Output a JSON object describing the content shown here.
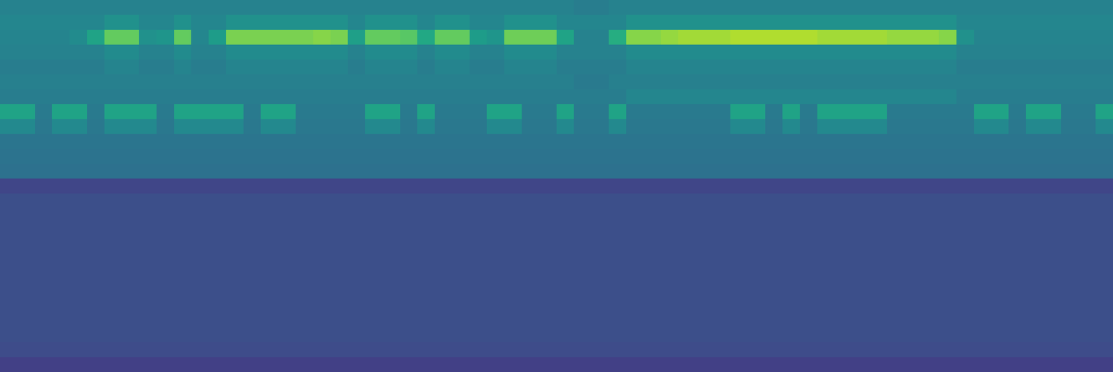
{
  "chart_data": {
    "type": "heatmap",
    "color": "viridis",
    "tick_labels": false,
    "zlim": [
      0,
      100
    ],
    "z": [
      [
        44,
        44,
        44,
        44,
        44,
        44,
        44,
        44,
        44,
        44,
        44,
        44,
        44,
        44,
        44,
        44,
        44,
        44,
        44,
        44,
        44,
        44,
        44,
        44,
        44,
        44,
        44,
        44,
        44,
        44,
        44,
        44,
        44,
        42,
        42,
        44,
        44,
        44,
        44,
        44,
        44,
        44,
        44,
        44,
        44,
        44,
        44,
        44,
        44,
        44,
        44,
        44,
        44,
        44,
        44,
        44,
        44,
        44,
        44,
        44,
        44,
        44,
        44,
        44
      ],
      [
        46,
        46,
        46,
        46,
        46,
        46,
        50,
        50,
        46,
        46,
        50,
        46,
        46,
        50,
        50,
        50,
        50,
        50,
        50,
        50,
        46,
        50,
        50,
        50,
        46,
        50,
        50,
        46,
        46,
        50,
        50,
        50,
        46,
        46,
        46,
        46,
        50,
        50,
        50,
        50,
        50,
        50,
        50,
        50,
        50,
        50,
        50,
        50,
        50,
        50,
        50,
        50,
        50,
        50,
        50,
        46,
        46,
        46,
        46,
        46,
        46,
        46,
        46,
        46
      ],
      [
        45,
        45,
        45,
        45,
        48,
        58,
        76,
        76,
        50,
        52,
        76,
        46,
        55,
        80,
        80,
        80,
        80,
        80,
        82,
        80,
        56,
        76,
        76,
        74,
        60,
        76,
        76,
        55,
        52,
        78,
        78,
        78,
        58,
        44,
        44,
        62,
        82,
        82,
        84,
        86,
        86,
        86,
        88,
        88,
        88,
        88,
        88,
        86,
        86,
        86,
        86,
        84,
        84,
        84,
        82,
        50,
        45,
        45,
        45,
        45,
        45,
        45,
        45,
        45
      ],
      [
        44,
        44,
        44,
        44,
        44,
        44,
        48,
        48,
        44,
        44,
        48,
        44,
        44,
        48,
        48,
        48,
        48,
        48,
        48,
        48,
        44,
        48,
        48,
        48,
        44,
        48,
        48,
        44,
        44,
        48,
        48,
        48,
        44,
        44,
        44,
        44,
        48,
        48,
        48,
        48,
        48,
        48,
        48,
        48,
        48,
        48,
        48,
        48,
        48,
        48,
        48,
        48,
        48,
        48,
        48,
        44,
        44,
        44,
        44,
        44,
        44,
        44,
        44,
        44
      ],
      [
        42,
        42,
        42,
        42,
        42,
        42,
        45,
        45,
        42,
        42,
        45,
        42,
        42,
        45,
        45,
        45,
        45,
        45,
        45,
        45,
        42,
        45,
        45,
        45,
        42,
        45,
        45,
        42,
        42,
        45,
        45,
        45,
        42,
        42,
        42,
        42,
        45,
        45,
        45,
        45,
        45,
        45,
        45,
        45,
        45,
        45,
        45,
        45,
        45,
        45,
        45,
        45,
        45,
        45,
        45,
        42,
        42,
        42,
        42,
        42,
        42,
        42,
        42,
        42
      ],
      [
        43,
        43,
        43,
        43,
        43,
        43,
        43,
        43,
        43,
        43,
        43,
        43,
        43,
        43,
        43,
        43,
        43,
        43,
        43,
        43,
        43,
        43,
        43,
        43,
        43,
        43,
        43,
        43,
        43,
        43,
        43,
        43,
        43,
        41,
        41,
        43,
        43,
        43,
        43,
        43,
        43,
        43,
        43,
        43,
        43,
        43,
        43,
        43,
        43,
        43,
        43,
        43,
        43,
        43,
        43,
        43,
        43,
        43,
        43,
        43,
        43,
        43,
        43,
        43
      ],
      [
        42,
        42,
        42,
        42,
        42,
        42,
        42,
        42,
        42,
        42,
        42,
        42,
        42,
        42,
        42,
        42,
        42,
        42,
        42,
        42,
        42,
        42,
        42,
        42,
        42,
        42,
        42,
        42,
        42,
        42,
        42,
        42,
        42,
        42,
        42,
        42,
        46,
        46,
        46,
        46,
        46,
        46,
        46,
        46,
        46,
        46,
        46,
        46,
        46,
        46,
        46,
        46,
        46,
        46,
        46,
        42,
        42,
        42,
        42,
        42,
        42,
        42,
        42,
        42
      ],
      [
        58,
        58,
        41,
        58,
        58,
        41,
        58,
        58,
        58,
        41,
        58,
        58,
        58,
        58,
        41,
        58,
        58,
        41,
        41,
        41,
        41,
        58,
        58,
        41,
        58,
        41,
        41,
        41,
        58,
        58,
        41,
        41,
        58,
        41,
        41,
        58,
        41,
        41,
        41,
        41,
        41,
        41,
        58,
        58,
        41,
        58,
        41,
        58,
        58,
        58,
        58,
        41,
        41,
        41,
        41,
        41,
        58,
        58,
        41,
        58,
        58,
        41,
        41,
        58
      ],
      [
        47,
        47,
        40,
        47,
        47,
        40,
        47,
        47,
        47,
        40,
        47,
        47,
        47,
        47,
        40,
        47,
        47,
        40,
        40,
        40,
        40,
        47,
        47,
        40,
        47,
        40,
        40,
        40,
        47,
        47,
        40,
        40,
        47,
        40,
        40,
        47,
        40,
        40,
        40,
        40,
        40,
        40,
        47,
        47,
        40,
        47,
        40,
        47,
        47,
        47,
        47,
        40,
        40,
        40,
        40,
        40,
        47,
        47,
        40,
        47,
        47,
        40,
        40,
        47
      ],
      [
        39,
        39,
        39,
        39,
        39,
        39,
        39,
        39,
        39,
        39,
        39,
        39,
        39,
        39,
        39,
        39,
        39,
        39,
        39,
        39,
        39,
        39,
        39,
        39,
        39,
        39,
        39,
        39,
        39,
        39,
        39,
        39,
        39,
        39,
        39,
        39,
        39,
        39,
        39,
        39,
        39,
        39,
        39,
        39,
        39,
        39,
        39,
        39,
        39,
        39,
        39,
        39,
        39,
        39,
        39,
        39,
        39,
        39,
        39,
        39,
        39,
        39,
        39,
        39
      ],
      [
        38,
        38,
        38,
        38,
        38,
        38,
        38,
        38,
        38,
        38,
        38,
        38,
        38,
        38,
        38,
        38,
        38,
        38,
        38,
        38,
        38,
        38,
        38,
        38,
        38,
        38,
        38,
        38,
        38,
        38,
        38,
        38,
        38,
        38,
        38,
        38,
        38,
        38,
        38,
        38,
        38,
        38,
        38,
        38,
        38,
        38,
        38,
        38,
        38,
        38,
        38,
        38,
        38,
        38,
        38,
        38,
        38,
        38,
        38,
        38,
        38,
        38,
        38,
        38
      ],
      [
        37,
        37,
        37,
        37,
        37,
        37,
        37,
        37,
        37,
        37,
        37,
        37,
        37,
        37,
        37,
        37,
        37,
        37,
        37,
        37,
        37,
        37,
        37,
        37,
        37,
        37,
        37,
        37,
        37,
        37,
        37,
        37,
        37,
        37,
        37,
        37,
        37,
        37,
        37,
        37,
        37,
        37,
        37,
        37,
        37,
        37,
        37,
        37,
        37,
        37,
        37,
        37,
        37,
        37,
        37,
        37,
        37,
        37,
        37,
        37,
        37,
        37,
        37,
        37
      ],
      [
        21,
        21,
        21,
        21,
        21,
        21,
        21,
        21,
        21,
        21,
        21,
        21,
        21,
        21,
        21,
        21,
        21,
        21,
        21,
        21,
        21,
        21,
        21,
        21,
        21,
        21,
        21,
        21,
        21,
        21,
        21,
        21,
        21,
        21,
        21,
        21,
        21,
        21,
        21,
        21,
        21,
        21,
        21,
        21,
        21,
        21,
        21,
        21,
        21,
        21,
        21,
        21,
        21,
        21,
        21,
        21,
        21,
        21,
        21,
        21,
        21,
        21,
        21,
        21
      ],
      [
        24,
        24,
        24,
        24,
        24,
        24,
        24,
        24,
        24,
        24,
        24,
        24,
        24,
        24,
        24,
        24,
        24,
        24,
        24,
        24,
        24,
        24,
        24,
        24,
        24,
        24,
        24,
        24,
        24,
        24,
        24,
        24,
        24,
        24,
        24,
        24,
        24,
        24,
        24,
        24,
        24,
        24,
        24,
        24,
        24,
        24,
        24,
        24,
        24,
        24,
        24,
        24,
        24,
        24,
        24,
        24,
        24,
        24,
        24,
        24,
        24,
        24,
        24,
        24
      ],
      [
        24,
        24,
        24,
        24,
        24,
        24,
        24,
        24,
        24,
        24,
        24,
        24,
        24,
        24,
        24,
        24,
        24,
        24,
        24,
        24,
        24,
        24,
        24,
        24,
        24,
        24,
        24,
        24,
        24,
        24,
        24,
        24,
        24,
        24,
        24,
        24,
        24,
        24,
        24,
        24,
        24,
        24,
        24,
        24,
        24,
        24,
        24,
        24,
        24,
        24,
        24,
        24,
        24,
        24,
        24,
        24,
        24,
        24,
        24,
        24,
        24,
        24,
        24,
        24
      ],
      [
        24,
        24,
        24,
        24,
        24,
        24,
        24,
        24,
        24,
        24,
        24,
        24,
        24,
        24,
        24,
        24,
        24,
        24,
        24,
        24,
        24,
        24,
        24,
        24,
        24,
        24,
        24,
        24,
        24,
        24,
        24,
        24,
        24,
        24,
        24,
        24,
        24,
        24,
        24,
        24,
        24,
        24,
        24,
        24,
        24,
        24,
        24,
        24,
        24,
        24,
        24,
        24,
        24,
        24,
        24,
        24,
        24,
        24,
        24,
        24,
        24,
        24,
        24,
        24
      ],
      [
        24,
        24,
        24,
        24,
        24,
        24,
        24,
        24,
        24,
        24,
        24,
        24,
        24,
        24,
        24,
        24,
        24,
        24,
        24,
        24,
        24,
        24,
        24,
        24,
        24,
        24,
        24,
        24,
        24,
        24,
        24,
        24,
        24,
        24,
        24,
        24,
        24,
        24,
        24,
        24,
        24,
        24,
        24,
        24,
        24,
        24,
        24,
        24,
        24,
        24,
        24,
        24,
        24,
        24,
        24,
        24,
        24,
        24,
        24,
        24,
        24,
        24,
        24,
        24
      ],
      [
        24,
        24,
        24,
        24,
        24,
        24,
        24,
        24,
        24,
        24,
        24,
        24,
        24,
        24,
        24,
        24,
        24,
        24,
        24,
        24,
        24,
        24,
        24,
        24,
        24,
        24,
        24,
        24,
        24,
        24,
        24,
        24,
        24,
        24,
        24,
        24,
        24,
        24,
        24,
        24,
        24,
        24,
        24,
        24,
        24,
        24,
        24,
        24,
        24,
        24,
        24,
        24,
        24,
        24,
        24,
        24,
        24,
        24,
        24,
        24,
        24,
        24,
        24,
        24
      ],
      [
        24,
        24,
        24,
        24,
        24,
        24,
        24,
        24,
        24,
        24,
        24,
        24,
        24,
        24,
        24,
        24,
        24,
        24,
        24,
        24,
        24,
        24,
        24,
        24,
        24,
        24,
        24,
        24,
        24,
        24,
        24,
        24,
        24,
        24,
        24,
        24,
        24,
        24,
        24,
        24,
        24,
        24,
        24,
        24,
        24,
        24,
        24,
        24,
        24,
        24,
        24,
        24,
        24,
        24,
        24,
        24,
        24,
        24,
        24,
        24,
        24,
        24,
        24,
        24
      ],
      [
        24,
        24,
        24,
        24,
        24,
        24,
        24,
        24,
        24,
        24,
        24,
        24,
        24,
        24,
        24,
        24,
        24,
        24,
        24,
        24,
        24,
        24,
        24,
        24,
        24,
        24,
        24,
        24,
        24,
        24,
        24,
        24,
        24,
        24,
        24,
        24,
        24,
        24,
        24,
        24,
        24,
        24,
        24,
        24,
        24,
        24,
        24,
        24,
        24,
        24,
        24,
        24,
        24,
        24,
        24,
        24,
        24,
        24,
        24,
        24,
        24,
        24,
        24,
        24
      ],
      [
        24,
        24,
        24,
        24,
        24,
        24,
        24,
        24,
        24,
        24,
        24,
        24,
        24,
        24,
        24,
        24,
        24,
        24,
        24,
        24,
        24,
        24,
        24,
        24,
        24,
        24,
        24,
        24,
        24,
        24,
        24,
        24,
        24,
        24,
        24,
        24,
        24,
        24,
        24,
        24,
        24,
        24,
        24,
        24,
        24,
        24,
        24,
        24,
        24,
        24,
        24,
        24,
        24,
        24,
        24,
        24,
        24,
        24,
        24,
        24,
        24,
        24,
        24,
        24
      ],
      [
        24,
        24,
        24,
        24,
        24,
        24,
        24,
        24,
        24,
        24,
        24,
        24,
        24,
        24,
        24,
        24,
        24,
        24,
        24,
        24,
        24,
        24,
        24,
        24,
        24,
        24,
        24,
        24,
        24,
        24,
        24,
        24,
        24,
        24,
        24,
        24,
        24,
        24,
        24,
        24,
        24,
        24,
        24,
        24,
        24,
        24,
        24,
        24,
        24,
        24,
        24,
        24,
        24,
        24,
        24,
        24,
        24,
        24,
        24,
        24,
        24,
        24,
        24,
        24
      ],
      [
        24,
        24,
        24,
        24,
        24,
        24,
        24,
        24,
        24,
        24,
        24,
        24,
        24,
        24,
        24,
        24,
        24,
        24,
        24,
        24,
        24,
        24,
        24,
        24,
        24,
        24,
        24,
        24,
        24,
        24,
        24,
        24,
        24,
        24,
        24,
        24,
        24,
        24,
        24,
        24,
        24,
        24,
        24,
        24,
        24,
        24,
        24,
        24,
        24,
        24,
        24,
        24,
        24,
        24,
        24,
        24,
        24,
        24,
        24,
        24,
        24,
        24,
        24,
        24
      ],
      [
        23,
        23,
        23,
        23,
        23,
        23,
        23,
        23,
        23,
        23,
        23,
        23,
        23,
        23,
        23,
        23,
        23,
        23,
        23,
        23,
        23,
        23,
        23,
        23,
        23,
        23,
        23,
        23,
        23,
        23,
        23,
        23,
        23,
        23,
        23,
        23,
        23,
        23,
        23,
        23,
        23,
        23,
        23,
        23,
        23,
        23,
        23,
        23,
        23,
        23,
        23,
        23,
        23,
        23,
        23,
        23,
        23,
        23,
        23,
        23,
        23,
        23,
        23,
        23
      ],
      [
        19,
        19,
        19,
        19,
        19,
        19,
        19,
        19,
        19,
        19,
        19,
        19,
        19,
        19,
        19,
        19,
        19,
        19,
        19,
        19,
        19,
        19,
        19,
        19,
        19,
        19,
        19,
        19,
        19,
        19,
        19,
        19,
        19,
        19,
        19,
        19,
        19,
        19,
        19,
        19,
        19,
        19,
        19,
        19,
        19,
        19,
        19,
        19,
        19,
        19,
        19,
        19,
        19,
        19,
        19,
        19,
        19,
        19,
        19,
        19,
        19,
        19,
        19,
        19
      ]
    ]
  }
}
